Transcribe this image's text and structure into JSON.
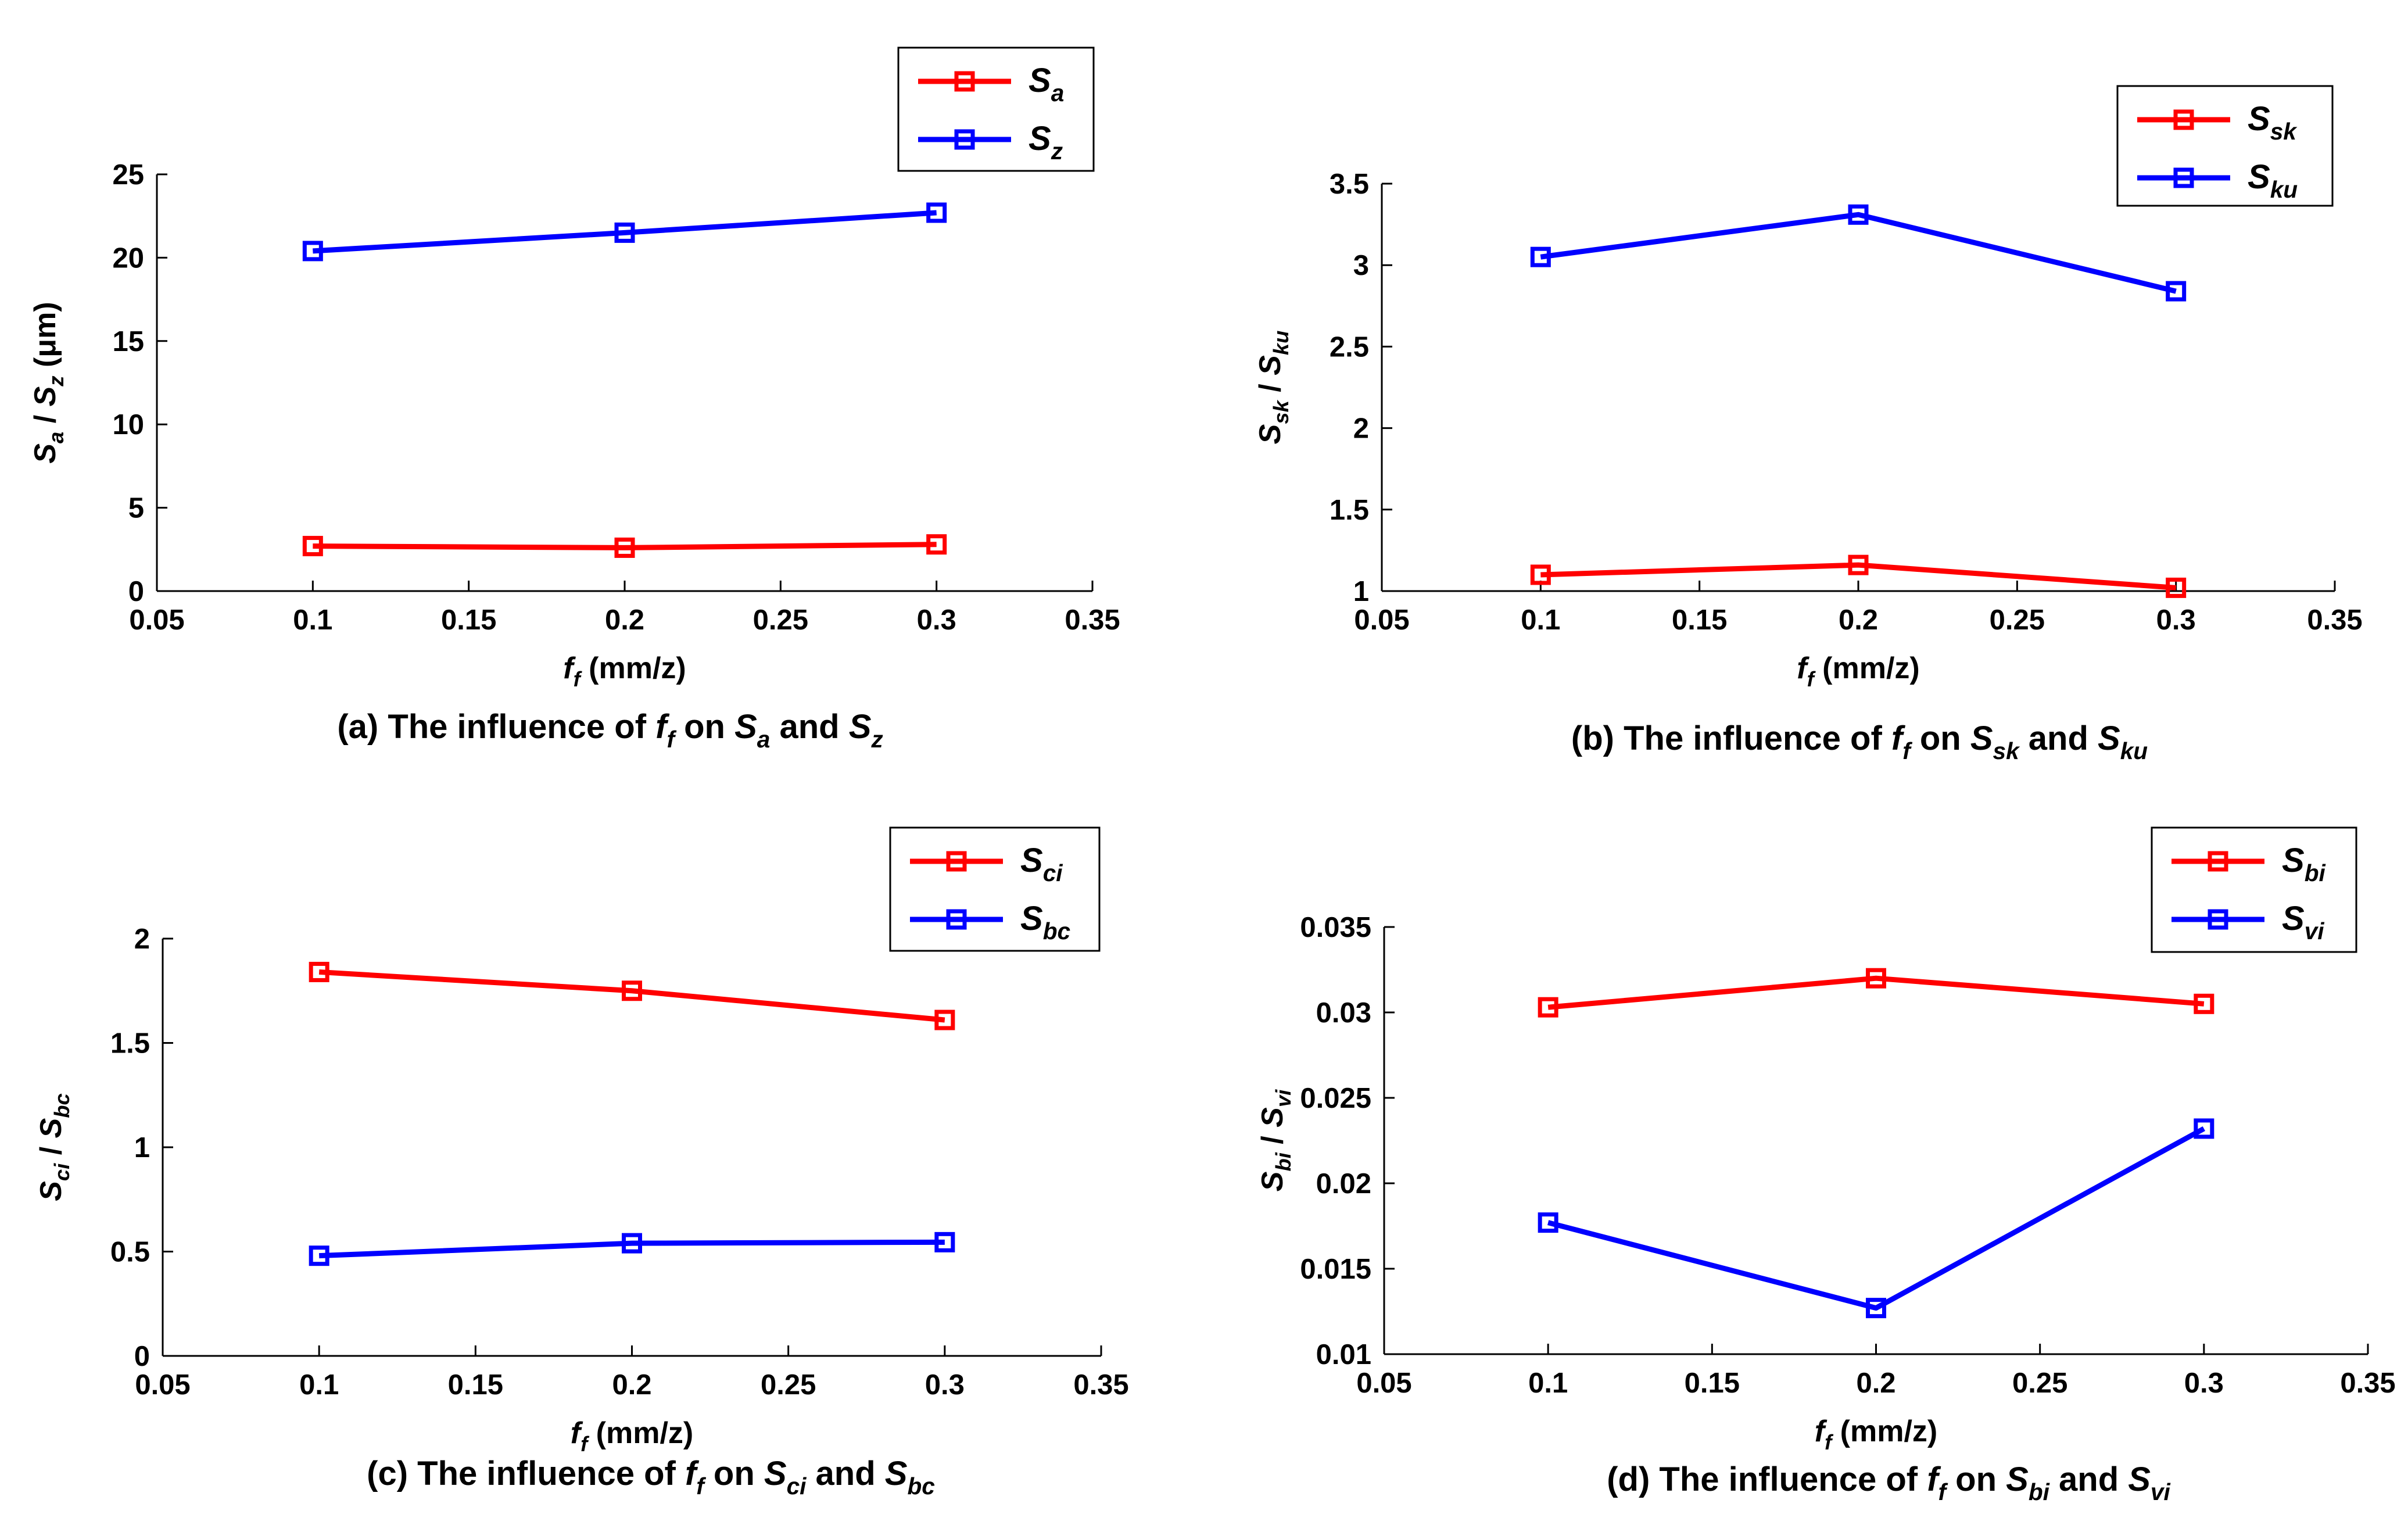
{
  "figure": {
    "description_free": true
  },
  "chart_data": [
    {
      "type": "line",
      "panel": "a",
      "x": [
        0.1,
        0.2,
        0.3
      ],
      "xlim": [
        0.05,
        0.35
      ],
      "xticks": [
        "0.05",
        "0.1",
        "0.15",
        "0.2",
        "0.25",
        "0.3",
        "0.35"
      ],
      "ylim": [
        0,
        25
      ],
      "yticks": [
        "0",
        "5",
        "10",
        "15",
        "20",
        "25"
      ],
      "xlabel": {
        "sym": "f",
        "sub": "f",
        "unit": "(mm/z)"
      },
      "ylabel": {
        "sym1": "S",
        "sub1": "a",
        "sep": " / ",
        "sym2": "S",
        "sub2": "z",
        "unit": "(μm)"
      },
      "series": [
        {
          "name": "S",
          "sub": "a",
          "color": "#ff0000",
          "values": [
            2.7,
            2.6,
            2.8
          ]
        },
        {
          "name": "S",
          "sub": "z",
          "color": "#0000ff",
          "values": [
            20.4,
            21.5,
            22.7
          ]
        }
      ],
      "legend_position": "top-right",
      "caption": {
        "pre": "(a) The influence of ",
        "sym": "f",
        "sub": "f",
        "mid": " on ",
        "s1": "S",
        "sub1": "a",
        "and": " and ",
        "s2": "S",
        "sub2": "z"
      }
    },
    {
      "type": "line",
      "panel": "b",
      "x": [
        0.1,
        0.2,
        0.3
      ],
      "xlim": [
        0.05,
        0.35
      ],
      "xticks": [
        "0.05",
        "0.1",
        "0.15",
        "0.2",
        "0.25",
        "0.3",
        "0.35"
      ],
      "ylim": [
        1,
        3.5
      ],
      "yticks": [
        "1",
        "1.5",
        "2",
        "2.5",
        "3",
        "3.5"
      ],
      "xlabel": {
        "sym": "f",
        "sub": "f",
        "unit": "(mm/z)"
      },
      "ylabel": {
        "sym1": "S",
        "sub1": "sk",
        "sep": " / ",
        "sym2": "S",
        "sub2": "ku",
        "unit": ""
      },
      "series": [
        {
          "name": "S",
          "sub": "sk",
          "color": "#ff0000",
          "values": [
            1.1,
            1.16,
            1.02
          ]
        },
        {
          "name": "S",
          "sub": "ku",
          "color": "#0000ff",
          "values": [
            3.05,
            3.31,
            2.84
          ]
        }
      ],
      "legend_position": "top-right",
      "caption": {
        "pre": "(b) The influence of ",
        "sym": "f",
        "sub": "f",
        "mid": " on ",
        "s1": "S",
        "sub1": "sk",
        "and": " and ",
        "s2": "S",
        "sub2": "ku"
      }
    },
    {
      "type": "line",
      "panel": "c",
      "x": [
        0.1,
        0.2,
        0.3
      ],
      "xlim": [
        0.05,
        0.35
      ],
      "xticks": [
        "0.05",
        "0.1",
        "0.15",
        "0.2",
        "0.25",
        "0.3",
        "0.35"
      ],
      "ylim": [
        0,
        2
      ],
      "yticks": [
        "0",
        "0.5",
        "1",
        "1.5",
        "2"
      ],
      "xlabel": {
        "sym": "f",
        "sub": "f",
        "unit": "(mm/z)"
      },
      "ylabel": {
        "sym1": "S",
        "sub1": "ci",
        "sep": " / ",
        "sym2": "S",
        "sub2": "bc",
        "unit": ""
      },
      "series": [
        {
          "name": "S",
          "sub": "ci",
          "color": "#ff0000",
          "values": [
            1.84,
            1.75,
            1.61
          ]
        },
        {
          "name": "S",
          "sub": "bc",
          "color": "#0000ff",
          "values": [
            0.48,
            0.54,
            0.545
          ]
        }
      ],
      "legend_position": "top-right",
      "caption": {
        "pre": "(c) The influence of ",
        "sym": "f",
        "sub": "f",
        "mid": " on ",
        "s1": "S",
        "sub1": "ci",
        "and": " and ",
        "s2": "S",
        "sub2": "bc"
      }
    },
    {
      "type": "line",
      "panel": "d",
      "x": [
        0.1,
        0.2,
        0.3
      ],
      "xlim": [
        0.05,
        0.35
      ],
      "xticks": [
        "0.05",
        "0.1",
        "0.15",
        "0.2",
        "0.25",
        "0.3",
        "0.35"
      ],
      "ylim": [
        0.01,
        0.035
      ],
      "yticks": [
        "0.01",
        "0.015",
        "0.02",
        "0.025",
        "0.03",
        "0.035"
      ],
      "xlabel": {
        "sym": "f",
        "sub": "f",
        "unit": "(mm/z)"
      },
      "ylabel": {
        "sym1": "S",
        "sub1": "bi",
        "sep": " / ",
        "sym2": "S",
        "sub2": "vi",
        "unit": ""
      },
      "series": [
        {
          "name": "S",
          "sub": "bi",
          "color": "#ff0000",
          "values": [
            0.0303,
            0.032,
            0.0305
          ]
        },
        {
          "name": "S",
          "sub": "vi",
          "color": "#0000ff",
          "values": [
            0.0177,
            0.0127,
            0.0232
          ]
        }
      ],
      "legend_position": "top-right",
      "caption": {
        "pre": "(d) The influence of ",
        "sym": "f",
        "sub": "f",
        "mid": " on ",
        "s1": "S",
        "sub1": "bi",
        "and": " and ",
        "s2": "S",
        "sub2": "vi"
      }
    }
  ]
}
